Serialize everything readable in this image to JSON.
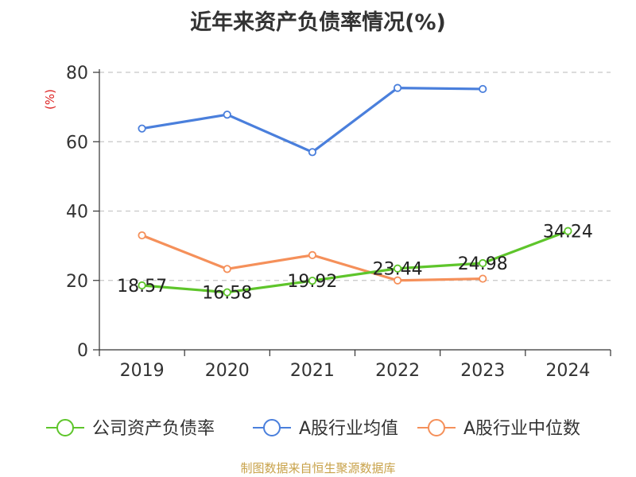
{
  "chart_data": {
    "type": "line",
    "title": "近年来资产负债率情况(%)",
    "ylabel": "(%)",
    "categories": [
      "2019",
      "2020",
      "2021",
      "2022",
      "2023",
      "2024"
    ],
    "ylim": [
      0,
      80
    ],
    "yticks": [
      0,
      20,
      40,
      60,
      80
    ],
    "grid": true,
    "legend_position": "bottom",
    "series": [
      {
        "name": "公司资产负债率",
        "color": "#5ec52b",
        "values": [
          18.57,
          16.58,
          19.92,
          23.44,
          24.98,
          34.24
        ],
        "labels": [
          "18.57",
          "16.58",
          "19.92",
          "23.44",
          "24.98",
          "34.24"
        ]
      },
      {
        "name": "A股行业均值",
        "color": "#4a7fdc",
        "values": [
          63.8,
          67.8,
          57.0,
          75.5,
          75.2,
          null
        ]
      },
      {
        "name": "A股行业中位数",
        "color": "#f5905a",
        "values": [
          33.0,
          23.3,
          27.3,
          20.0,
          20.5,
          null
        ]
      }
    ]
  },
  "source": "制图数据来自恒生聚源数据库"
}
